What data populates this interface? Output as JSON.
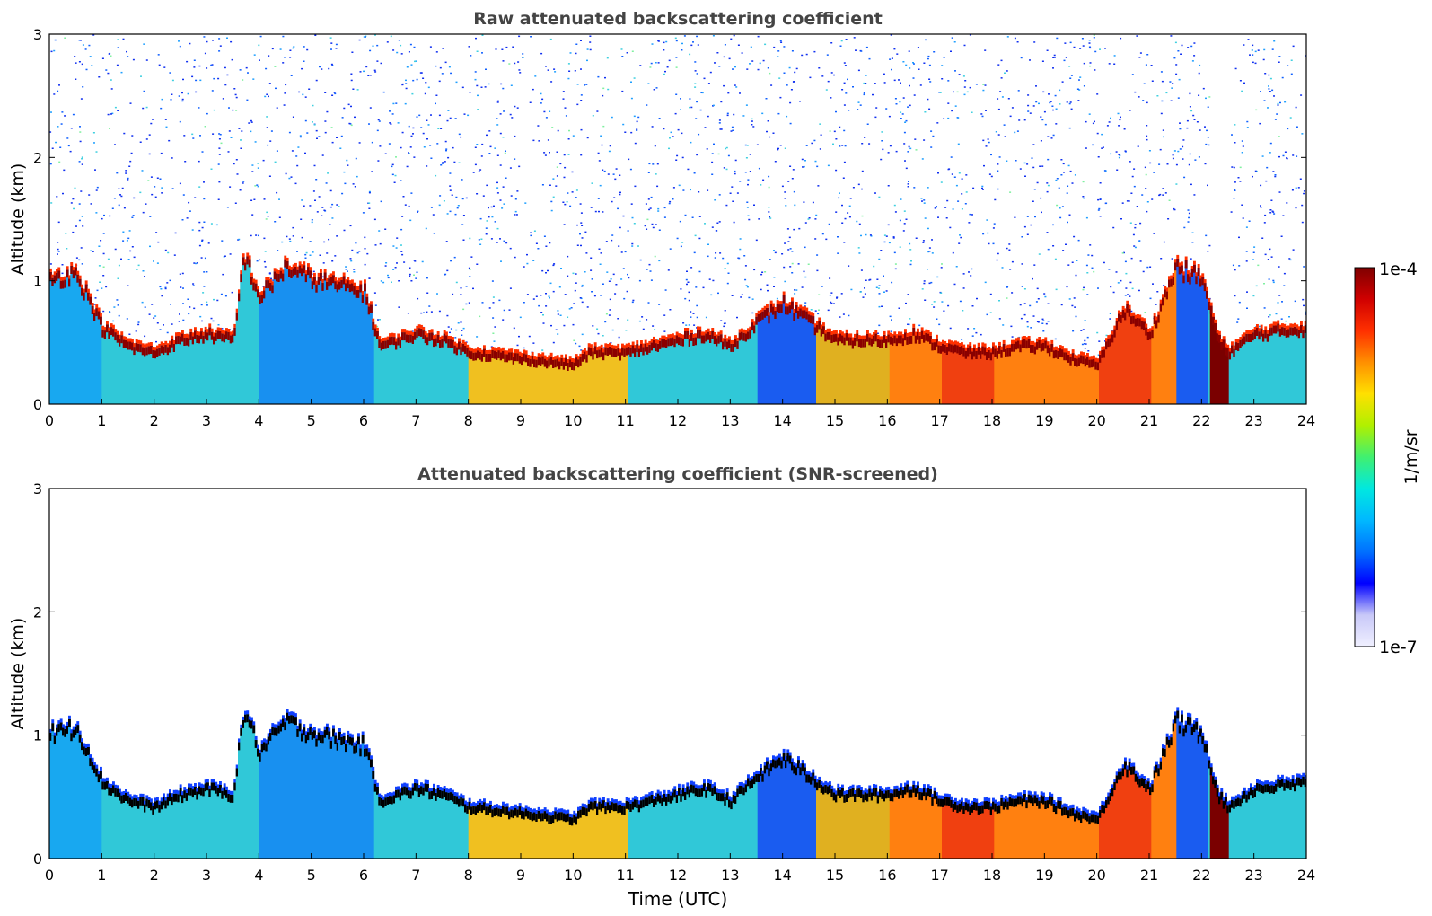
{
  "figure": {
    "xlabel": "Time (UTC)",
    "ylabel": "Altitude (km)"
  },
  "chart_data": [
    {
      "type": "heatmap",
      "title": "Raw attenuated backscattering coefficient",
      "xlabel": "",
      "ylabel": "Altitude (km)",
      "xlim": [
        0,
        24
      ],
      "ylim": [
        0,
        3
      ],
      "xticks": [
        "0",
        "1",
        "2",
        "3",
        "4",
        "5",
        "6",
        "7",
        "8",
        "9",
        "10",
        "11",
        "12",
        "13",
        "14",
        "15",
        "16",
        "17",
        "18",
        "19",
        "20",
        "21",
        "22",
        "23",
        "24"
      ],
      "yticks": [
        "0",
        "1",
        "2",
        "3"
      ],
      "background_noise": true,
      "noise_gap_hours": [
        22.15,
        22.55
      ],
      "layer_top_km": {
        "time_utc": [
          0,
          0.5,
          1,
          1.5,
          2,
          2.5,
          3,
          3.5,
          3.7,
          4,
          4.5,
          5,
          5.5,
          6,
          6.3,
          7,
          7.5,
          8,
          9,
          10,
          10.3,
          11,
          12,
          12.5,
          13,
          13.5,
          14,
          14.5,
          15,
          16,
          16.5,
          17,
          17.5,
          18,
          18.5,
          19,
          19.5,
          20,
          20.5,
          21,
          21.5,
          22,
          22.3,
          22.5,
          23,
          24
        ],
        "altitude_km": [
          1.05,
          1.1,
          0.65,
          0.5,
          0.45,
          0.55,
          0.6,
          0.55,
          1.25,
          0.9,
          1.15,
          1.05,
          1.0,
          0.95,
          0.5,
          0.6,
          0.55,
          0.45,
          0.4,
          0.35,
          0.45,
          0.45,
          0.55,
          0.6,
          0.5,
          0.7,
          0.85,
          0.7,
          0.55,
          0.55,
          0.6,
          0.5,
          0.45,
          0.45,
          0.5,
          0.5,
          0.4,
          0.35,
          0.8,
          0.6,
          1.15,
          1.05,
          0.55,
          0.45,
          0.6,
          0.65
        ]
      }
    },
    {
      "type": "heatmap",
      "title": "Attenuated backscattering coefficient (SNR-screened)",
      "xlabel": "Time (UTC)",
      "ylabel": "Altitude (km)",
      "xlim": [
        0,
        24
      ],
      "ylim": [
        0,
        3
      ],
      "xticks": [
        "0",
        "1",
        "2",
        "3",
        "4",
        "5",
        "6",
        "7",
        "8",
        "9",
        "10",
        "11",
        "12",
        "13",
        "14",
        "15",
        "16",
        "17",
        "18",
        "19",
        "20",
        "21",
        "22",
        "23",
        "24"
      ],
      "yticks": [
        "0",
        "1",
        "2",
        "3"
      ],
      "background_noise": false,
      "layer_top_km": {
        "time_utc": [
          0,
          0.5,
          1,
          1.5,
          2,
          2.5,
          3,
          3.5,
          3.7,
          4,
          4.5,
          5,
          5.5,
          6,
          6.3,
          7,
          7.5,
          8,
          9,
          10,
          10.3,
          11,
          12,
          12.5,
          13,
          13.5,
          14,
          14.5,
          15,
          16,
          16.5,
          17,
          17.5,
          18,
          18.5,
          19,
          19.5,
          20,
          20.5,
          21,
          21.5,
          22,
          22.3,
          22.5,
          23,
          24
        ],
        "altitude_km": [
          1.05,
          1.1,
          0.65,
          0.5,
          0.45,
          0.55,
          0.6,
          0.55,
          1.25,
          0.9,
          1.15,
          1.05,
          1.0,
          0.95,
          0.5,
          0.6,
          0.55,
          0.45,
          0.4,
          0.35,
          0.45,
          0.45,
          0.55,
          0.6,
          0.5,
          0.7,
          0.85,
          0.7,
          0.55,
          0.55,
          0.6,
          0.5,
          0.45,
          0.45,
          0.5,
          0.5,
          0.4,
          0.35,
          0.8,
          0.6,
          1.15,
          1.05,
          0.55,
          0.45,
          0.6,
          0.65
        ]
      }
    }
  ],
  "colorbar": {
    "label": "1/m/sr",
    "max_label": "1e-4",
    "min_label": "1e-7",
    "colors": [
      "#f0f0ff",
      "#c8c8f8",
      "#0000ff",
      "#0070ff",
      "#00b8ff",
      "#00e8e0",
      "#40f070",
      "#b0f000",
      "#ffe000",
      "#ff9000",
      "#ff3000",
      "#d00000",
      "#800000"
    ]
  }
}
